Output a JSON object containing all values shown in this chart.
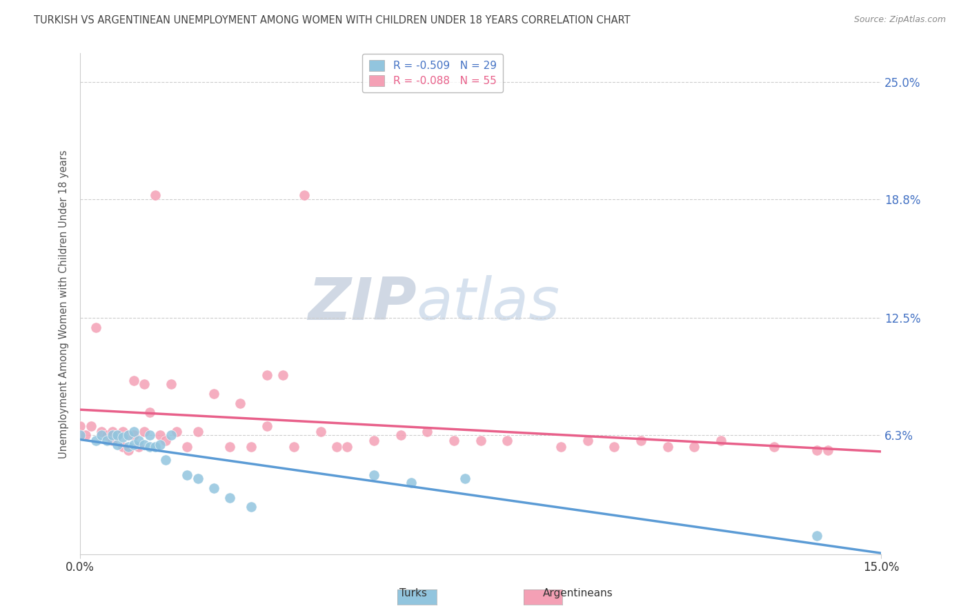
{
  "title": "TURKISH VS ARGENTINEAN UNEMPLOYMENT AMONG WOMEN WITH CHILDREN UNDER 18 YEARS CORRELATION CHART",
  "source": "Source: ZipAtlas.com",
  "ylabel": "Unemployment Among Women with Children Under 18 years",
  "xlim": [
    0.0,
    0.15
  ],
  "ylim": [
    0.0,
    0.265
  ],
  "ytick_positions": [
    0.063,
    0.125,
    0.188,
    0.25
  ],
  "ytick_labels": [
    "6.3%",
    "12.5%",
    "18.8%",
    "25.0%"
  ],
  "xtick_positions": [
    0.0,
    0.15
  ],
  "xtick_labels": [
    "0.0%",
    "15.0%"
  ],
  "legend_turks": "R = -0.509   N = 29",
  "legend_argentineans": "R = -0.088   N = 55",
  "turks_color": "#92c5de",
  "argentineans_color": "#f4a0b5",
  "turks_line_color": "#5b9bd5",
  "argentineans_line_color": "#e8608a",
  "turks_x": [
    0.0,
    0.003,
    0.004,
    0.005,
    0.006,
    0.007,
    0.007,
    0.008,
    0.009,
    0.009,
    0.01,
    0.01,
    0.011,
    0.012,
    0.013,
    0.013,
    0.014,
    0.015,
    0.016,
    0.017,
    0.02,
    0.022,
    0.025,
    0.028,
    0.032,
    0.055,
    0.062,
    0.072,
    0.138
  ],
  "turks_y": [
    0.063,
    0.06,
    0.063,
    0.06,
    0.063,
    0.058,
    0.063,
    0.062,
    0.057,
    0.063,
    0.058,
    0.065,
    0.06,
    0.058,
    0.057,
    0.063,
    0.057,
    0.058,
    0.05,
    0.063,
    0.042,
    0.04,
    0.035,
    0.03,
    0.025,
    0.042,
    0.038,
    0.04,
    0.01
  ],
  "argentineans_x": [
    0.0,
    0.0,
    0.001,
    0.002,
    0.003,
    0.004,
    0.005,
    0.006,
    0.006,
    0.007,
    0.008,
    0.008,
    0.009,
    0.009,
    0.01,
    0.01,
    0.011,
    0.012,
    0.012,
    0.013,
    0.014,
    0.015,
    0.016,
    0.017,
    0.018,
    0.02,
    0.022,
    0.025,
    0.028,
    0.03,
    0.032,
    0.035,
    0.035,
    0.038,
    0.04,
    0.042,
    0.045,
    0.048,
    0.05,
    0.055,
    0.06,
    0.065,
    0.07,
    0.075,
    0.08,
    0.09,
    0.095,
    0.1,
    0.105,
    0.11,
    0.115,
    0.12,
    0.13,
    0.138,
    0.14
  ],
  "argentineans_y": [
    0.063,
    0.068,
    0.063,
    0.068,
    0.12,
    0.065,
    0.063,
    0.06,
    0.065,
    0.063,
    0.057,
    0.065,
    0.055,
    0.063,
    0.063,
    0.092,
    0.057,
    0.065,
    0.09,
    0.075,
    0.19,
    0.063,
    0.06,
    0.09,
    0.065,
    0.057,
    0.065,
    0.085,
    0.057,
    0.08,
    0.057,
    0.068,
    0.095,
    0.095,
    0.057,
    0.19,
    0.065,
    0.057,
    0.057,
    0.06,
    0.063,
    0.065,
    0.06,
    0.06,
    0.06,
    0.057,
    0.06,
    0.057,
    0.06,
    0.057,
    0.057,
    0.06,
    0.057,
    0.055,
    0.055
  ]
}
